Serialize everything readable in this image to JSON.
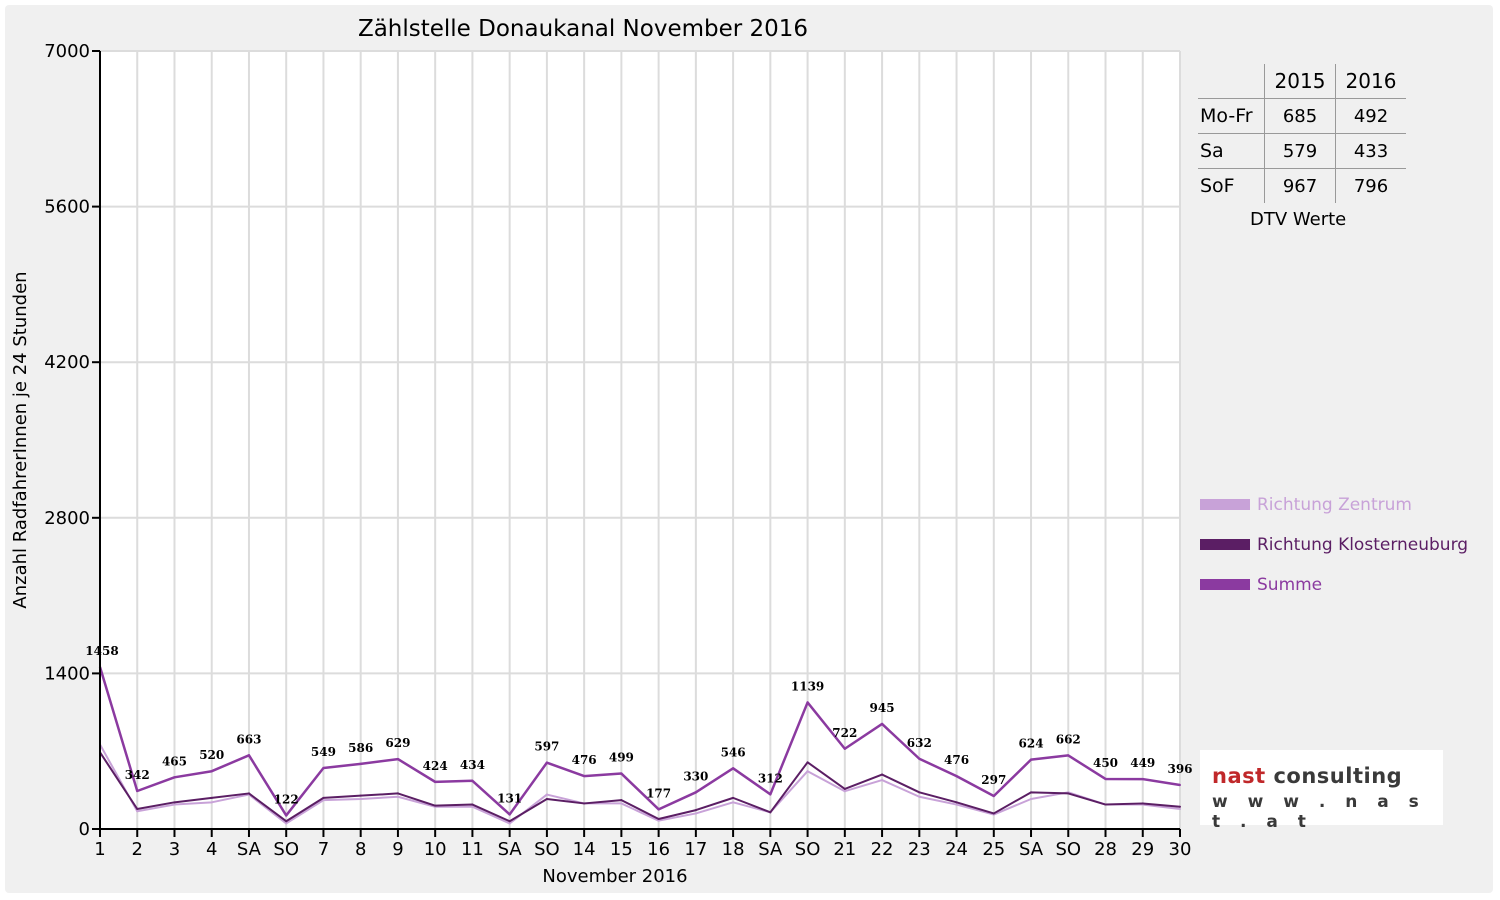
{
  "chart_data": {
    "type": "line",
    "title": "Zählstelle Donaukanal November 2016",
    "xlabel": "November 2016",
    "ylabel": "Anzahl RadfahrerInnen je 24 Stunden",
    "ylim": [
      0,
      7000
    ],
    "yticks": [
      0,
      1400,
      2800,
      4200,
      5600,
      7000
    ],
    "grid": true,
    "legend_position": "right",
    "categories": [
      "1",
      "2",
      "3",
      "4",
      "SA",
      "SO",
      "7",
      "8",
      "9",
      "10",
      "11",
      "SA",
      "SO",
      "14",
      "15",
      "16",
      "17",
      "18",
      "SA",
      "SO",
      "21",
      "22",
      "23",
      "24",
      "25",
      "SA",
      "SO",
      "28",
      "29",
      "30"
    ],
    "red_categories": [
      0,
      5,
      12,
      19,
      26
    ],
    "series": [
      {
        "name": "Richtung Zentrum",
        "color": "#c8a2d8",
        "values": [
          760,
          160,
          220,
          240,
          310,
          50,
          260,
          270,
          290,
          200,
          200,
          50,
          310,
          230,
          230,
          75,
          140,
          240,
          150,
          520,
          340,
          440,
          290,
          220,
          130,
          270,
          330,
          220,
          220,
          180
        ]
      },
      {
        "name": "Richtung Klosterneuburg",
        "color": "#5b1e64",
        "values": [
          690,
          180,
          240,
          280,
          320,
          70,
          280,
          300,
          320,
          210,
          220,
          70,
          270,
          230,
          260,
          90,
          170,
          280,
          150,
          600,
          360,
          490,
          330,
          240,
          140,
          330,
          320,
          220,
          230,
          200
        ]
      },
      {
        "name": "Summe",
        "color": "#8b3aa0",
        "values": [
          1458,
          342,
          465,
          520,
          663,
          122,
          549,
          586,
          629,
          424,
          434,
          131,
          597,
          476,
          499,
          177,
          330,
          546,
          312,
          1139,
          722,
          945,
          632,
          476,
          297,
          624,
          662,
          450,
          449,
          396
        ]
      }
    ],
    "data_labels": [
      "1458",
      "342",
      "465",
      "520",
      "663",
      "122",
      "549",
      "586",
      "629",
      "424",
      "434",
      "131",
      "597",
      "476",
      "499",
      "177",
      "330",
      "546",
      "312",
      "1139",
      "722",
      "945",
      "632",
      "476",
      "297",
      "624",
      "662",
      "450",
      "449",
      "396"
    ]
  },
  "dtv_table": {
    "header": [
      "",
      "2015",
      "2016"
    ],
    "rows": [
      {
        "label": "Mo-Fr",
        "v2015": "685",
        "v2016": "492"
      },
      {
        "label": "Sa",
        "v2015": "579",
        "v2016": "433"
      },
      {
        "label": "SoF",
        "v2015": "967",
        "v2016": "796"
      }
    ],
    "caption": "DTV Werte"
  },
  "logo": {
    "brand_red": "nast",
    "brand_rest": " consulting",
    "url": "w w w . n a s t . a t"
  },
  "colors": {
    "red_day": "#e00000",
    "grid": "#dcdcdc"
  }
}
